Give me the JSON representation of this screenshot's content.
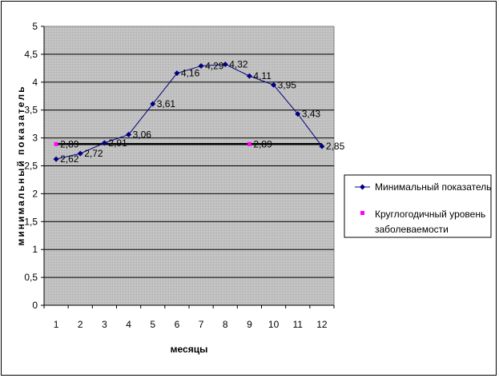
{
  "chart_data": {
    "type": "line",
    "title": "",
    "xlabel": "месяцы",
    "ylabel": "минимальный показатель",
    "categories": [
      "1",
      "2",
      "3",
      "4",
      "5",
      "6",
      "7",
      "8",
      "9",
      "10",
      "11",
      "12"
    ],
    "ylim": [
      0,
      5
    ],
    "yticks": [
      "0",
      "0,5",
      "1",
      "1,5",
      "2",
      "2,5",
      "3",
      "3,5",
      "4",
      "4,5",
      "5"
    ],
    "grid": true,
    "legend_position": "right",
    "series": [
      {
        "name": "Минимальный показатель",
        "color": "#000080",
        "marker": "diamond",
        "values": [
          2.62,
          2.72,
          2.91,
          3.06,
          3.61,
          4.16,
          4.29,
          4.32,
          4.11,
          3.95,
          3.43,
          2.85
        ],
        "labels": [
          "2,62",
          "2,72",
          "2,91",
          "3,06",
          "3,61",
          "4,16",
          "4,29",
          "4,32",
          "4,11",
          "3,95",
          "3,43",
          "2,85"
        ]
      },
      {
        "name": "Круглогодичный уровень заболеваемости",
        "legend_lines": [
          "Круглогодичный уровень",
          "заболеваемости"
        ],
        "color": "#ff00ff",
        "marker": "square",
        "constant_value": 2.89,
        "points": [
          {
            "x": "1",
            "y": 2.89,
            "label": "2,89"
          },
          {
            "x": "9",
            "y": 2.89,
            "label": "2,89"
          }
        ]
      }
    ]
  }
}
